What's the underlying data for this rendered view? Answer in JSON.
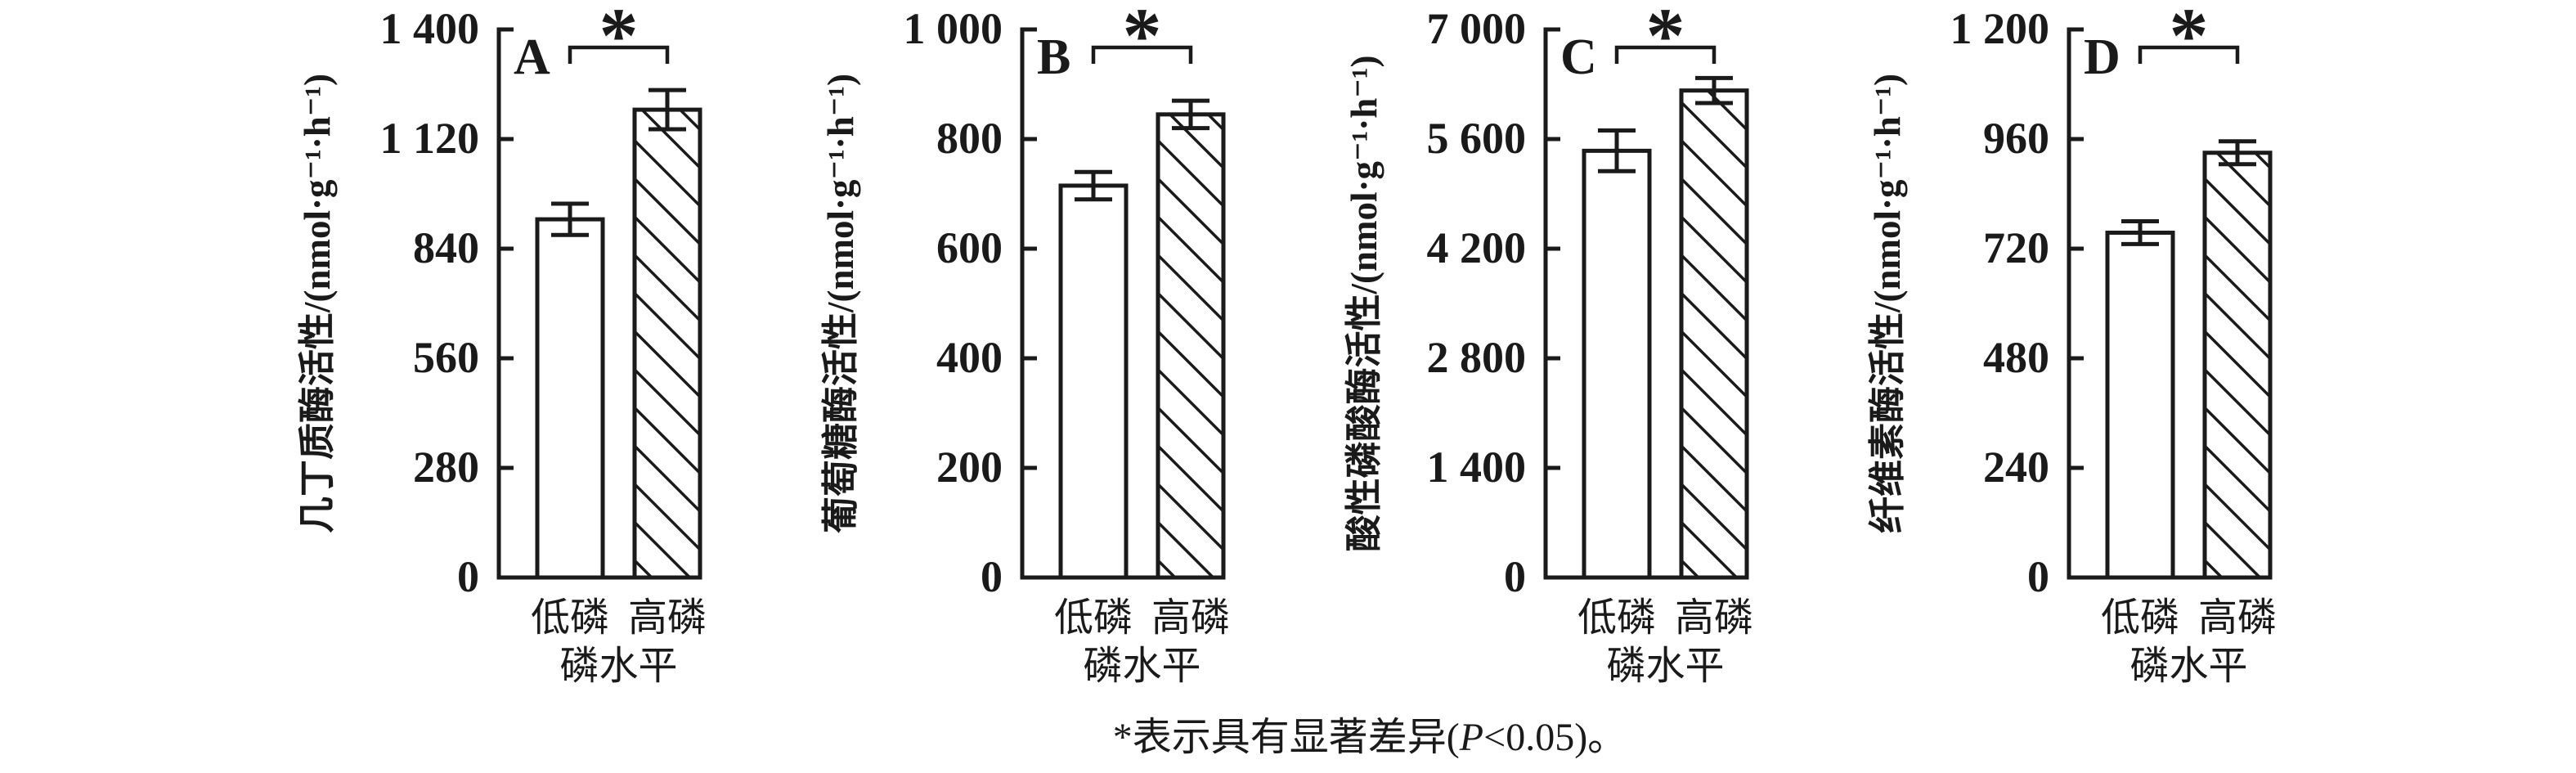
{
  "figure": {
    "background_color": "#ffffff",
    "ink_color": "#1a1a1a",
    "footnote": {
      "prefix": "*表示具有显著差异(",
      "p_symbol": "P",
      "rest": "<0.05)。"
    }
  },
  "chart_data": [
    {
      "type": "bar",
      "panel_label": "A",
      "ylabel": "几丁质酶活性/(nmol·g⁻¹·h⁻¹)",
      "xlabel": "磷水平",
      "categories": [
        "低磷",
        "高磷"
      ],
      "values": [
        915,
        1195
      ],
      "errors": [
        40,
        50
      ],
      "bar_styles": [
        "plain",
        "hatched"
      ],
      "ylim": [
        0,
        1400
      ],
      "yticks": [
        0,
        280,
        560,
        840,
        1120,
        1400
      ],
      "significance": "*",
      "grid": "off",
      "legend": "none"
    },
    {
      "type": "bar",
      "panel_label": "B",
      "ylabel": "葡萄糖酶活性/(nmol·g⁻¹·h⁻¹)",
      "xlabel": "磷水平",
      "categories": [
        "低磷",
        "高磷"
      ],
      "values": [
        715,
        845
      ],
      "errors": [
        25,
        25
      ],
      "bar_styles": [
        "plain",
        "hatched"
      ],
      "ylim": [
        0,
        1000
      ],
      "yticks": [
        0,
        200,
        400,
        600,
        800,
        1000
      ],
      "significance": "*",
      "grid": "off",
      "legend": "none"
    },
    {
      "type": "bar",
      "panel_label": "C",
      "ylabel": "酸性磷酸酶活性/(nmol·g⁻¹·h⁻¹)",
      "xlabel": "磷水平",
      "categories": [
        "低磷",
        "高磷"
      ],
      "values": [
        5450,
        6220
      ],
      "errors": [
        260,
        160
      ],
      "bar_styles": [
        "plain",
        "hatched"
      ],
      "ylim": [
        0,
        7000
      ],
      "yticks": [
        0,
        1400,
        2800,
        4200,
        5600,
        7000
      ],
      "significance": "*",
      "grid": "off",
      "legend": "none"
    },
    {
      "type": "bar",
      "panel_label": "D",
      "ylabel": "纤维素酶活性/(nmol·g⁻¹·h⁻¹)",
      "xlabel": "磷水平",
      "categories": [
        "低磷",
        "高磷"
      ],
      "values": [
        755,
        930
      ],
      "errors": [
        25,
        25
      ],
      "bar_styles": [
        "plain",
        "hatched"
      ],
      "ylim": [
        0,
        1200
      ],
      "yticks": [
        0,
        240,
        480,
        720,
        960,
        1200
      ],
      "significance": "*",
      "grid": "off",
      "legend": "none"
    }
  ]
}
